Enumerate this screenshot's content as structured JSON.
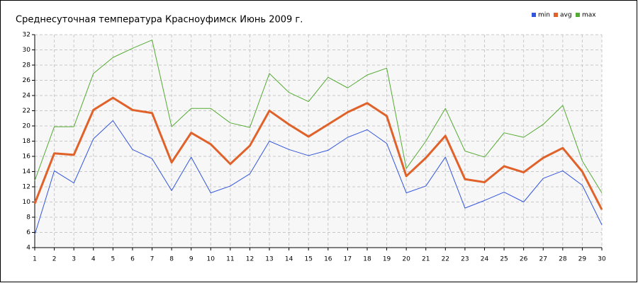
{
  "chart_data": {
    "type": "line",
    "title": "Среднесуточная температура Красноуфимск  Июнь 2009 г.",
    "x": [
      1,
      2,
      3,
      4,
      5,
      6,
      7,
      8,
      9,
      10,
      11,
      12,
      13,
      14,
      15,
      16,
      17,
      18,
      19,
      20,
      21,
      22,
      23,
      24,
      25,
      26,
      27,
      28,
      29,
      30
    ],
    "series": [
      {
        "name": "min",
        "color": "#3355dd",
        "width": 1,
        "values": [
          5.7,
          14.1,
          12.5,
          18.3,
          20.7,
          16.9,
          15.7,
          11.5,
          15.9,
          11.2,
          12.1,
          13.7,
          18.0,
          16.9,
          16.1,
          16.8,
          18.5,
          19.5,
          17.7,
          11.2,
          12.1,
          15.9,
          9.2,
          10.2,
          11.3,
          10.0,
          13.1,
          14.1,
          12.2,
          7.0
        ]
      },
      {
        "name": "avg",
        "color": "#e0622a",
        "width": 3,
        "values": [
          9.8,
          16.4,
          16.2,
          22.1,
          23.7,
          22.1,
          21.7,
          15.2,
          19.1,
          17.6,
          15.0,
          17.4,
          22.0,
          20.2,
          18.6,
          20.2,
          21.8,
          23.0,
          21.3,
          13.4,
          15.8,
          18.7,
          13.0,
          12.6,
          14.7,
          13.9,
          15.8,
          17.1,
          14.0,
          9.0
        ]
      },
      {
        "name": "max",
        "color": "#55aa33",
        "width": 1,
        "values": [
          12.8,
          19.9,
          19.9,
          26.9,
          29.0,
          30.2,
          31.3,
          19.9,
          22.3,
          22.3,
          20.4,
          19.8,
          26.9,
          24.4,
          23.2,
          26.4,
          25.0,
          26.7,
          27.6,
          14.4,
          18.0,
          22.3,
          16.7,
          15.9,
          19.1,
          18.5,
          20.2,
          22.7,
          15.4,
          11.2
        ]
      }
    ],
    "xlim": [
      1,
      30
    ],
    "xticks": [
      1,
      2,
      3,
      4,
      5,
      6,
      7,
      8,
      9,
      10,
      11,
      12,
      13,
      14,
      15,
      16,
      17,
      18,
      19,
      20,
      21,
      22,
      23,
      24,
      25,
      26,
      27,
      28,
      29,
      30
    ],
    "ylim": [
      4,
      32
    ],
    "yticks": [
      4,
      6,
      8,
      10,
      12,
      14,
      16,
      18,
      20,
      22,
      24,
      26,
      28,
      30,
      32
    ],
    "grid": true,
    "legend": "top-right"
  }
}
